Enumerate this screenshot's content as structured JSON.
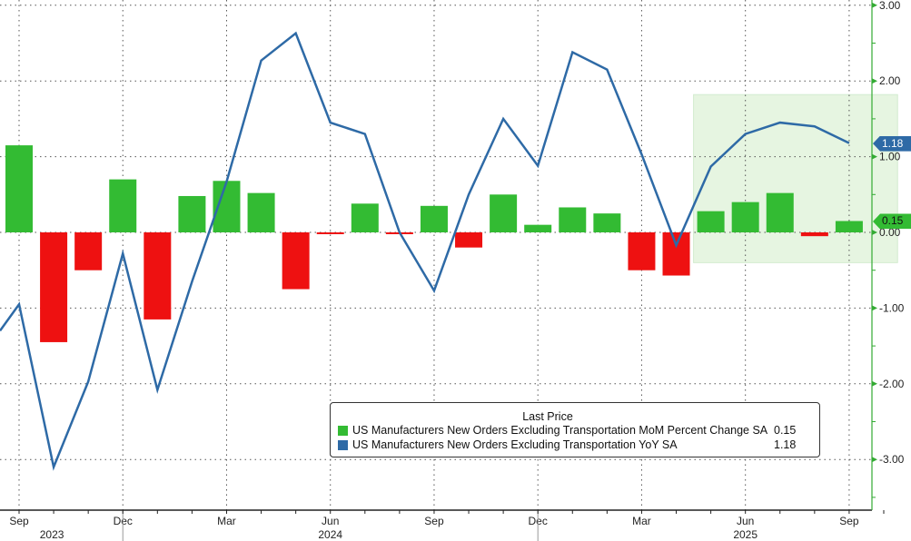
{
  "chart_data": {
    "type": "bar",
    "title": "",
    "legend_title": "Last Price",
    "legend_placement": "bottom-right",
    "x": [
      "Sep 2023",
      "Oct 2023",
      "Nov 2023",
      "Dec 2023",
      "Jan 2024",
      "Feb 2024",
      "Mar 2024",
      "Apr 2024",
      "May 2024",
      "Jun 2024",
      "Jul 2024",
      "Aug 2024",
      "Sep 2024",
      "Oct 2024",
      "Nov 2024",
      "Dec 2024",
      "Jan 2025",
      "Feb 2025",
      "Mar 2025",
      "Apr 2025",
      "May 2025",
      "Jun 2025",
      "Jul 2025",
      "Aug 2025",
      "Sep 2025"
    ],
    "series": [
      {
        "name": "US Manufacturers New Orders Excluding Transportation MoM Percent Change SA",
        "type": "bar",
        "last": "0.15",
        "color": "#33bb33",
        "neg_color": "#ee1111",
        "values": [
          1.15,
          -1.45,
          -0.5,
          0.7,
          -1.15,
          0.48,
          0.68,
          0.52,
          -0.75,
          -0.02,
          0.38,
          -0.01,
          0.35,
          -0.2,
          0.5,
          0.1,
          0.33,
          0.25,
          -0.5,
          -0.57,
          0.28,
          0.4,
          0.52,
          -0.05,
          0.15
        ]
      },
      {
        "name": "US Manufacturers New Orders Excluding Transportation YoY SA",
        "type": "line",
        "last": "1.18",
        "color": "#2e6aa6",
        "start_value": -1.3,
        "values": [
          -0.95,
          -3.1,
          -1.97,
          -0.28,
          -2.08,
          -0.65,
          0.67,
          2.27,
          2.63,
          1.45,
          1.3,
          0.0,
          -0.77,
          0.5,
          1.5,
          0.88,
          2.38,
          2.15,
          1.03,
          -0.17,
          0.87,
          1.3,
          1.45,
          1.4,
          1.18
        ]
      }
    ],
    "yticks": [
      "3.00",
      "2.00",
      "1.00",
      "0.00",
      "-1.00",
      "-2.00",
      "-3.00"
    ],
    "ylim": [
      -3.5,
      3.05
    ],
    "xtick_labels": [
      {
        "label": "Sep",
        "index": 0
      },
      {
        "label": "Dec",
        "index": 3
      },
      {
        "label": "Mar",
        "index": 6
      },
      {
        "label": "Jun",
        "index": 9
      },
      {
        "label": "Sep",
        "index": 12
      },
      {
        "label": "Dec",
        "index": 15
      },
      {
        "label": "Mar",
        "index": 18
      },
      {
        "label": "Jun",
        "index": 21
      },
      {
        "label": "Sep",
        "index": 24
      }
    ],
    "year_labels": [
      {
        "label": "2023",
        "index": 1
      },
      {
        "label": "2024",
        "index": 9
      },
      {
        "label": "2025",
        "index": 21
      }
    ],
    "highlight_range": {
      "from_index": 19.5,
      "to_index": 25.4,
      "y_from": -0.4,
      "y_to": 1.82
    },
    "grid": true
  }
}
